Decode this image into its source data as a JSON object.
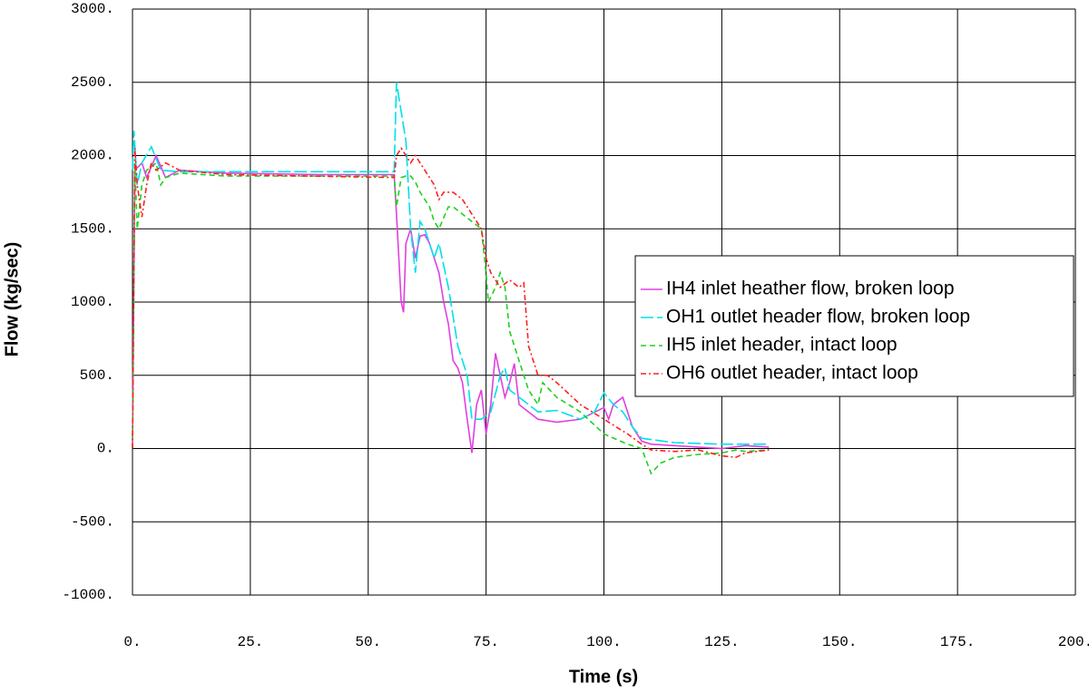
{
  "chart_data": {
    "type": "line",
    "x_label": "Time (s)",
    "y_label": "Flow (kg/sec)",
    "xlim": [
      0,
      200
    ],
    "ylim": [
      -1000,
      3000
    ],
    "xticks": [
      {
        "value": 0,
        "label": "0."
      },
      {
        "value": 25,
        "label": "25."
      },
      {
        "value": 50,
        "label": "50."
      },
      {
        "value": 75,
        "label": "75."
      },
      {
        "value": 100,
        "label": "100."
      },
      {
        "value": 125,
        "label": "125."
      },
      {
        "value": 150,
        "label": "150."
      },
      {
        "value": 175,
        "label": "175."
      },
      {
        "value": 200,
        "label": "200."
      }
    ],
    "yticks": [
      {
        "value": -1000,
        "label": "-1000."
      },
      {
        "value": -500,
        "label": "-500."
      },
      {
        "value": 0,
        "label": "0."
      },
      {
        "value": 500,
        "label": "500."
      },
      {
        "value": 1000,
        "label": "1000."
      },
      {
        "value": 1500,
        "label": "1500."
      },
      {
        "value": 2000,
        "label": "2000."
      },
      {
        "value": 2500,
        "label": "2500."
      },
      {
        "value": 3000,
        "label": "3000."
      }
    ],
    "grid": true,
    "legend": "right",
    "series": [
      {
        "name": "IH4 inlet heather flow, broken loop",
        "color": "#e040e0",
        "dash": "solid",
        "x": [
          0,
          0.5,
          2,
          3,
          5,
          7,
          10,
          20,
          40,
          55.5,
          56,
          57,
          57.5,
          58,
          59,
          60,
          61,
          62,
          63,
          65,
          66,
          67,
          68,
          69,
          70,
          71,
          72,
          73,
          74,
          75,
          76,
          77,
          78,
          79,
          80,
          81,
          82,
          84,
          86,
          90,
          95,
          100,
          101,
          102,
          104,
          106,
          108,
          110,
          115,
          120,
          125,
          130,
          135
        ],
        "values": [
          0,
          1900,
          1950,
          1850,
          2000,
          1850,
          1900,
          1880,
          1870,
          1870,
          1600,
          1000,
          930,
          1400,
          1500,
          1300,
          1450,
          1460,
          1400,
          1200,
          1000,
          850,
          600,
          550,
          450,
          200,
          -30,
          300,
          400,
          100,
          300,
          650,
          500,
          350,
          450,
          580,
          300,
          250,
          200,
          180,
          200,
          280,
          200,
          300,
          350,
          150,
          50,
          30,
          20,
          10,
          0,
          20,
          10
        ]
      },
      {
        "name": "OH1 outlet header flow, broken loop",
        "color": "#00e0e8",
        "dash": "long",
        "x": [
          0,
          0.3,
          1,
          2,
          4,
          6,
          10,
          30,
          55.5,
          56,
          57,
          58,
          59,
          60,
          61,
          62,
          63,
          64,
          65,
          67,
          69,
          71,
          72,
          74,
          76,
          78,
          79,
          80,
          82,
          84,
          86,
          90,
          95,
          98,
          100,
          102,
          104,
          106,
          108,
          115,
          125,
          130,
          135
        ],
        "values": [
          1900,
          2170,
          1800,
          1950,
          2060,
          1900,
          1890,
          1890,
          1890,
          2500,
          2300,
          2100,
          1500,
          1200,
          1550,
          1500,
          1400,
          1300,
          1400,
          1100,
          700,
          500,
          200,
          200,
          250,
          500,
          550,
          400,
          350,
          300,
          250,
          260,
          200,
          250,
          380,
          300,
          250,
          150,
          70,
          40,
          30,
          30,
          30
        ]
      },
      {
        "name": "IH5 inlet header, intact loop",
        "color": "#20d020",
        "dash": "short",
        "x": [
          0,
          0.5,
          1,
          2,
          3,
          5,
          6,
          7,
          10,
          20,
          55.5,
          56,
          57,
          58,
          59,
          60,
          61,
          63,
          64,
          65,
          67,
          68,
          70,
          72,
          74,
          75,
          75.5,
          77,
          78,
          79,
          80,
          82,
          84,
          86,
          87,
          90,
          95,
          100,
          105,
          108,
          110,
          112,
          115,
          120,
          125,
          128,
          130,
          135
        ],
        "values": [
          0,
          1950,
          1500,
          1800,
          1900,
          1950,
          1800,
          1850,
          1880,
          1860,
          1860,
          1650,
          1850,
          1860,
          1860,
          1820,
          1750,
          1650,
          1550,
          1500,
          1650,
          1650,
          1600,
          1550,
          1500,
          1200,
          1000,
          1100,
          1200,
          1100,
          800,
          600,
          400,
          300,
          450,
          350,
          250,
          100,
          30,
          0,
          -170,
          -100,
          -60,
          -40,
          -30,
          -10,
          -20,
          -10
        ]
      },
      {
        "name": "OH6 outlet header, intact loop",
        "color": "#ff2020",
        "dash": "dotdash",
        "x": [
          0,
          0.5,
          1,
          2,
          3,
          4,
          5,
          7,
          10,
          20,
          55.5,
          56,
          57,
          59,
          60,
          62,
          64,
          65,
          66,
          68,
          70,
          72,
          74,
          75,
          76,
          78,
          80,
          82,
          83,
          84,
          85,
          86,
          88,
          90,
          95,
          100,
          105,
          108,
          110,
          115,
          120,
          125,
          128,
          130,
          135
        ],
        "values": [
          0,
          2050,
          1800,
          1580,
          1800,
          1950,
          1900,
          1950,
          1900,
          1870,
          1850,
          2000,
          2050,
          1950,
          2000,
          1900,
          1800,
          1700,
          1750,
          1750,
          1700,
          1600,
          1500,
          1300,
          1200,
          1100,
          1150,
          1100,
          1130,
          700,
          600,
          500,
          500,
          450,
          300,
          200,
          100,
          30,
          -10,
          -20,
          -10,
          -50,
          -60,
          -30,
          -10
        ]
      }
    ]
  }
}
